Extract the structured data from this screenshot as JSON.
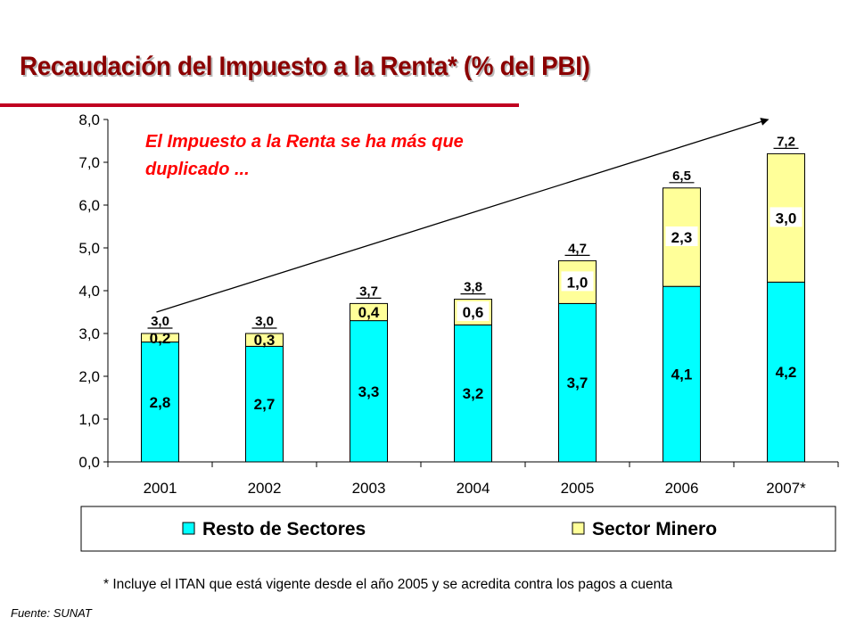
{
  "slide": {
    "title": "Recaudación del Impuesto a la Renta* (% del PBI)",
    "footnote": "* Incluye el ITAN que está vigente desde el año 2005 y se acredita contra los pagos a cuenta",
    "source": "Fuente: SUNAT"
  },
  "colors": {
    "title": "#8b0000",
    "rule": "#c00020",
    "annotation": "#ff0000",
    "resto": "#00ffff",
    "minero": "#ffff99"
  },
  "chart_data": {
    "type": "bar",
    "stacked": true,
    "categories": [
      "2001",
      "2002",
      "2003",
      "2004",
      "2005",
      "2006",
      "2007*"
    ],
    "series": [
      {
        "name": "Resto de Sectores",
        "values": [
          2.8,
          2.7,
          3.3,
          3.2,
          3.7,
          4.1,
          4.2
        ],
        "labels": [
          "2,8",
          "2,7",
          "3,3",
          "3,2",
          "3,7",
          "4,1",
          "4,2"
        ],
        "color": "#00ffff"
      },
      {
        "name": "Sector Minero",
        "values": [
          0.2,
          0.3,
          0.4,
          0.6,
          1.0,
          2.3,
          3.0
        ],
        "labels": [
          "0,2",
          "0,3",
          "0,4",
          "0,6",
          "1,0",
          "2,3",
          "3,0"
        ],
        "color": "#ffff99"
      }
    ],
    "totals": [
      3.0,
      3.0,
      3.7,
      3.8,
      4.7,
      6.5,
      7.2
    ],
    "total_labels": [
      "3,0",
      "3,0",
      "3,7",
      "3,8",
      "4,7",
      "6,5",
      "7,2"
    ],
    "ylim": [
      0,
      8
    ],
    "yticks": [
      "0,0",
      "1,0",
      "2,0",
      "3,0",
      "4,0",
      "5,0",
      "6,0",
      "7,0",
      "8,0"
    ],
    "legend_position": "bottom",
    "grid": false,
    "annotation": "El Impuesto a la Renta se ha más que duplicado ...",
    "trend_arrow": {
      "from_category": "2001",
      "from_value": 3.5,
      "to_category": "2007*",
      "to_value": 8.0
    }
  }
}
